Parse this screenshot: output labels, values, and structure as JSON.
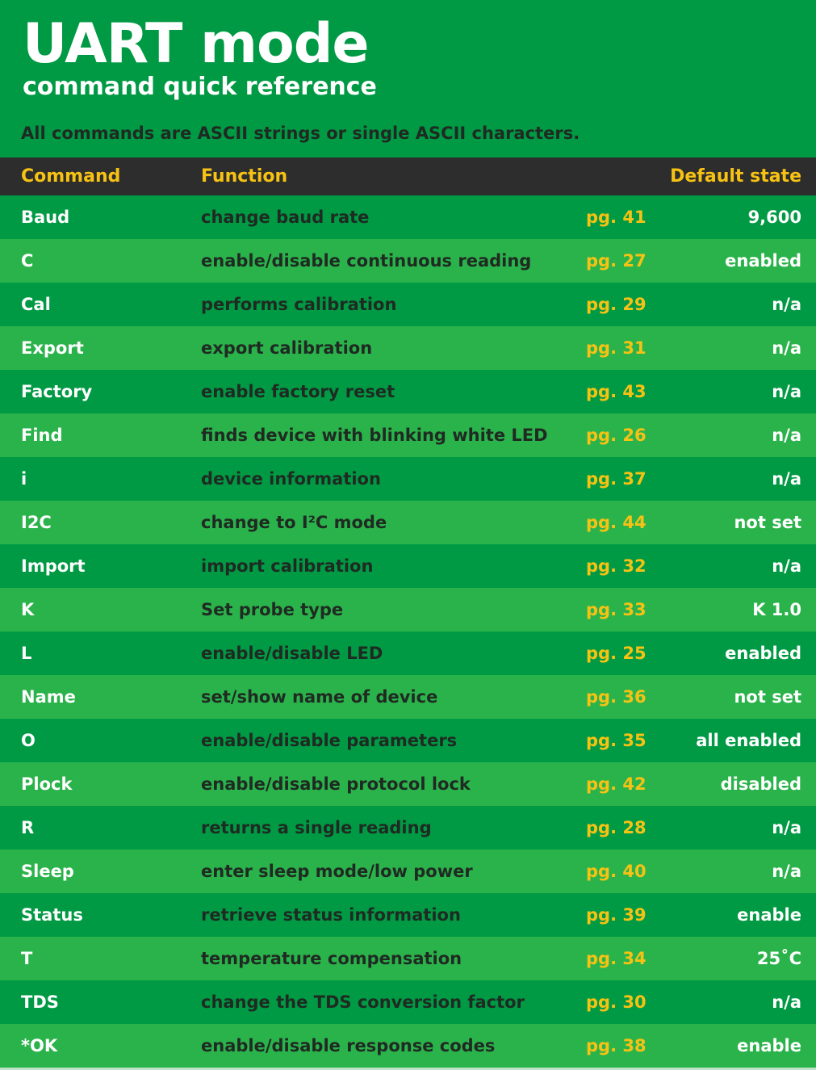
{
  "header": {
    "title": "UART mode",
    "subtitle": "command quick reference",
    "note": "All commands are ASCII strings or single ASCII characters."
  },
  "table": {
    "columns": {
      "command": "Command",
      "function": "Function",
      "default": "Default state"
    },
    "rows": [
      {
        "command": "Baud",
        "function": "change baud rate",
        "page": "pg. 41",
        "default": "9,600"
      },
      {
        "command": "C",
        "function": "enable/disable continuous reading",
        "page": "pg. 27",
        "default": "enabled"
      },
      {
        "command": "Cal",
        "function": "performs calibration",
        "page": "pg. 29",
        "default": "n/a"
      },
      {
        "command": "Export",
        "function": "export calibration",
        "page": "pg. 31",
        "default": "n/a"
      },
      {
        "command": "Factory",
        "function": "enable factory reset",
        "page": "pg. 43",
        "default": "n/a"
      },
      {
        "command": "Find",
        "function": "finds device with blinking white LED",
        "page": "pg. 26",
        "default": "n/a"
      },
      {
        "command": "i",
        "function": "device information",
        "page": "pg. 37",
        "default": "n/a"
      },
      {
        "command": "I2C",
        "function": "change to I²C mode",
        "page": "pg. 44",
        "default": "not set"
      },
      {
        "command": "Import",
        "function": "import calibration",
        "page": "pg. 32",
        "default": "n/a"
      },
      {
        "command": "K",
        "function": "Set probe type",
        "page": "pg. 33",
        "default": "K 1.0"
      },
      {
        "command": "L",
        "function": "enable/disable LED",
        "page": "pg. 25",
        "default": "enabled"
      },
      {
        "command": "Name",
        "function": "set/show name of device",
        "page": "pg. 36",
        "default": "not set"
      },
      {
        "command": "O",
        "function": "enable/disable parameters",
        "page": "pg. 35",
        "default": "all enabled"
      },
      {
        "command": "Plock",
        "function": "enable/disable protocol lock",
        "page": "pg. 42",
        "default": "disabled"
      },
      {
        "command": "R",
        "function": "returns a single reading",
        "page": "pg. 28",
        "default": "n/a"
      },
      {
        "command": "Sleep",
        "function": "enter sleep mode/low power",
        "page": "pg. 40",
        "default": "n/a"
      },
      {
        "command": "Status",
        "function": "retrieve status information",
        "page": "pg. 39",
        "default": "enable"
      },
      {
        "command": "T",
        "function": "temperature compensation",
        "page": "pg. 34",
        "default": "25˚C"
      },
      {
        "command": "TDS",
        "function": "change the TDS conversion factor",
        "page": "pg. 30",
        "default": "n/a"
      },
      {
        "command": "*OK",
        "function": "enable/disable response codes",
        "page": "pg. 38",
        "default": "enable"
      }
    ]
  },
  "colors": {
    "background_green": "#009a44",
    "row_light_green": "#2bb34b",
    "header_bar": "#2d2d2d",
    "accent_yellow": "#f6c214",
    "dark_text": "#1f2a22",
    "white": "#ffffff"
  }
}
